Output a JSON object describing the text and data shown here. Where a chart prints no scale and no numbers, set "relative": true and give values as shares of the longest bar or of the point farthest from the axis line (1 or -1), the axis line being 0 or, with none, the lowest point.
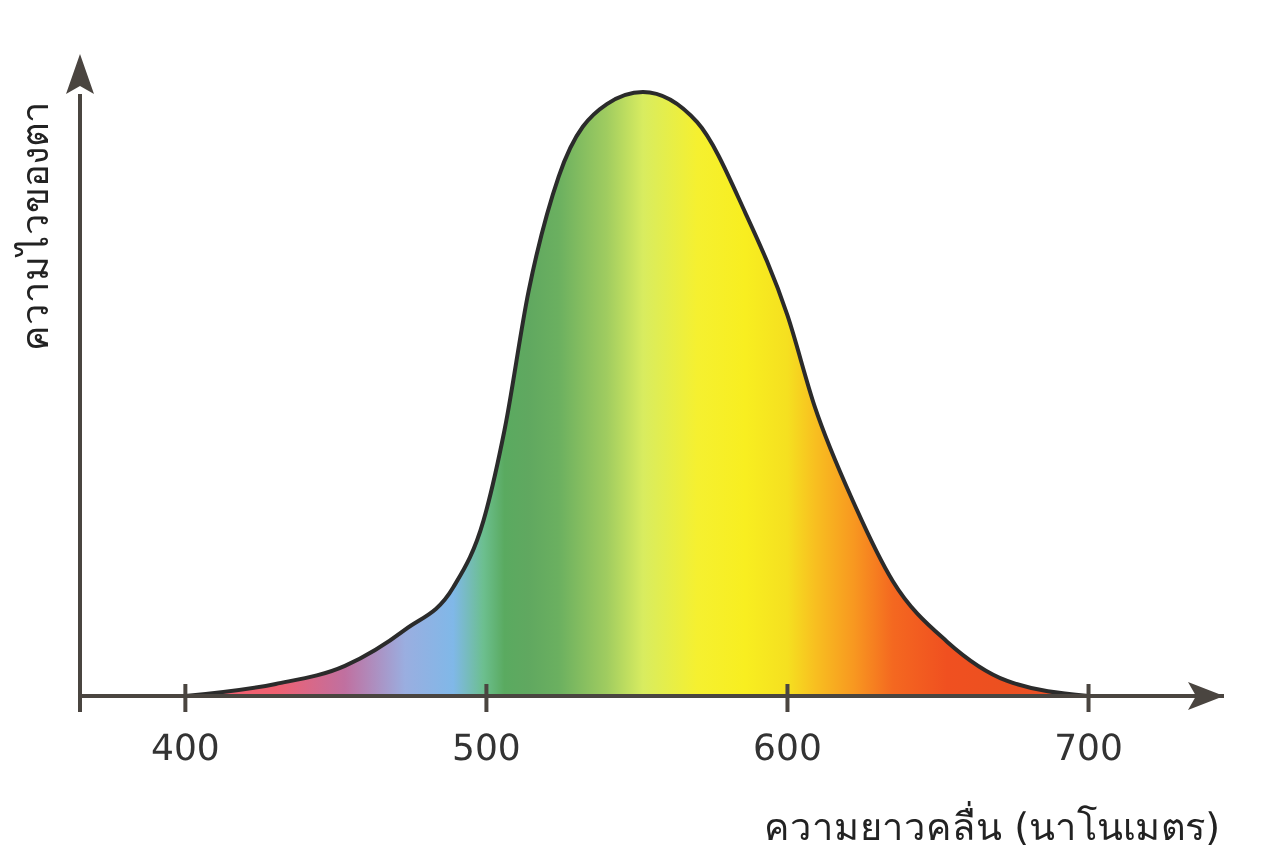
{
  "chart_data": {
    "type": "area",
    "relative": true,
    "xlabel": "ความยาวคลื่น (นาโนเมตร)",
    "ylabel": "ความไวของตา",
    "xlim": [
      365,
      745
    ],
    "xticks": [
      400,
      500,
      600,
      700
    ],
    "grid": false,
    "series": [
      {
        "color": "#2b2b2b",
        "x": [
          400,
          430,
          453,
          473,
          489,
          499,
          506,
          514,
          524,
          540,
          552,
          570,
          586,
          600,
          609,
          622,
          635,
          653,
          673,
          700
        ],
        "values": [
          0,
          0.02,
          0.05,
          0.11,
          0.18,
          0.29,
          0.44,
          0.67,
          0.86,
          0.98,
          1,
          0.95,
          0.8,
          0.63,
          0.48,
          0.32,
          0.19,
          0.09,
          0.025,
          0
        ],
        "colors": [
          "#f06070",
          "#f06070",
          "#c070a0",
          "#9aaee0",
          "#80b8e8",
          "#6cbf8f",
          "#5aaa60",
          "#60a860",
          "#6bb060",
          "#a0cc60",
          "#d8ec60",
          "#f5f030",
          "#f8ee20",
          "#f5e020",
          "#f8c020",
          "#f89820",
          "#f46820",
          "#f05020",
          "#ec5020",
          "#e85030"
        ]
      }
    ]
  }
}
